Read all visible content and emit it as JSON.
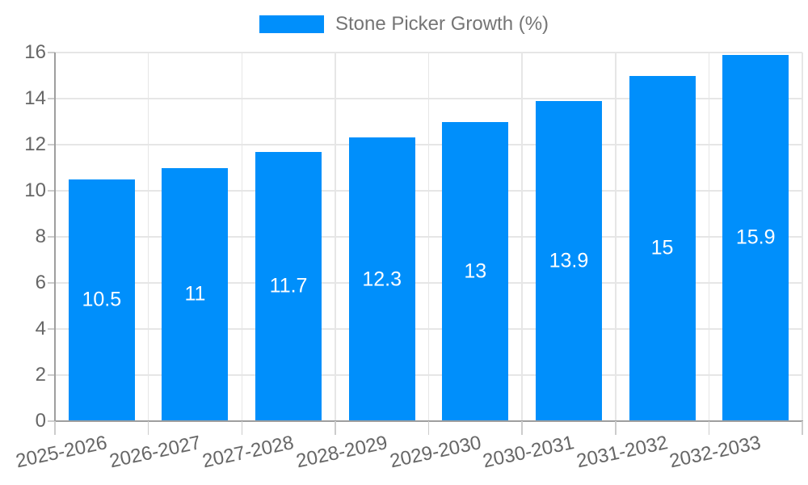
{
  "chart": {
    "legend": {
      "label": "Stone Picker Growth (%)"
    }
  },
  "chart_data": {
    "type": "bar",
    "title": "",
    "categories": [
      "2025-2026",
      "2026-2027",
      "2027-2028",
      "2028-2029",
      "2029-2030",
      "2030-2031",
      "2031-2032",
      "2032-2033"
    ],
    "series": [
      {
        "name": "Stone Picker Growth (%)",
        "values": [
          10.5,
          11,
          11.7,
          12.3,
          13,
          13.9,
          15,
          15.9
        ]
      }
    ],
    "value_labels": [
      "10.5",
      "11",
      "11.7",
      "12.3",
      "13",
      "13.9",
      "15",
      "15.9"
    ],
    "xlabel": "",
    "ylabel": "",
    "ylim": [
      0,
      16
    ],
    "ytick_step": 2,
    "yticks": [
      "0",
      "2",
      "4",
      "6",
      "8",
      "10",
      "12",
      "14",
      "16"
    ],
    "grid": true,
    "legend_position": "top",
    "x_label_rotation_deg": -12,
    "colors": {
      "bar": "#008FFB",
      "value_label": "#ffffff",
      "gridline": "#e6e6e6",
      "axis_line": "#9e9e9e",
      "tick": "#cccccc",
      "tick_label": "#666666",
      "legend_text": "#757575",
      "background": "#ffffff"
    }
  }
}
